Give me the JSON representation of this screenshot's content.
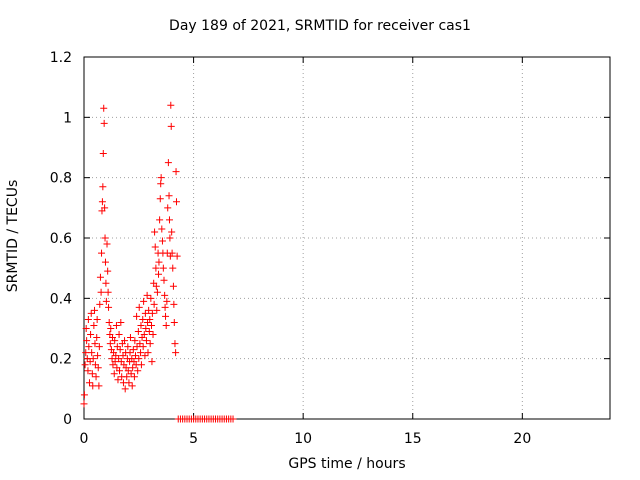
{
  "chart_data": {
    "type": "scatter",
    "title": "Day 189 of 2021, SRMTID for receiver cas1",
    "xlabel": "GPS time / hours",
    "ylabel": "SRMTID / TECUs",
    "xlim": [
      0,
      24
    ],
    "ylim": [
      0,
      1.2
    ],
    "xticks": [
      0,
      5,
      10,
      15,
      20
    ],
    "xtick_labels": [
      "0",
      "5",
      "10",
      "15",
      "20"
    ],
    "yticks": [
      0,
      0.2,
      0.4,
      0.6,
      0.8,
      1,
      1.2
    ],
    "ytick_labels": [
      "0",
      "0.2",
      "0.4",
      "0.6",
      "0.8",
      "1",
      "1.2"
    ],
    "grid": true,
    "marker": "+",
    "color": "#ff0000",
    "series": [
      {
        "name": "SRMTID",
        "points": [
          [
            0.0,
            0.05
          ],
          [
            0.02,
            0.08
          ],
          [
            0.05,
            0.18
          ],
          [
            0.08,
            0.22
          ],
          [
            0.1,
            0.3
          ],
          [
            0.12,
            0.26
          ],
          [
            0.15,
            0.2
          ],
          [
            0.18,
            0.16
          ],
          [
            0.2,
            0.33
          ],
          [
            0.22,
            0.24
          ],
          [
            0.25,
            0.12
          ],
          [
            0.28,
            0.19
          ],
          [
            0.3,
            0.28
          ],
          [
            0.33,
            0.35
          ],
          [
            0.35,
            0.22
          ],
          [
            0.38,
            0.15
          ],
          [
            0.4,
            0.11
          ],
          [
            0.42,
            0.2
          ],
          [
            0.45,
            0.31
          ],
          [
            0.48,
            0.36
          ],
          [
            0.5,
            0.25
          ],
          [
            0.52,
            0.18
          ],
          [
            0.55,
            0.14
          ],
          [
            0.58,
            0.27
          ],
          [
            0.6,
            0.33
          ],
          [
            0.62,
            0.21
          ],
          [
            0.65,
            0.17
          ],
          [
            0.68,
            0.11
          ],
          [
            0.7,
            0.24
          ],
          [
            0.72,
            0.38
          ],
          [
            0.75,
            0.47
          ],
          [
            0.78,
            0.42
          ],
          [
            0.8,
            0.55
          ],
          [
            0.82,
            0.69
          ],
          [
            0.84,
            0.72
          ],
          [
            0.86,
            0.77
          ],
          [
            0.88,
            0.88
          ],
          [
            0.9,
            1.03
          ],
          [
            0.92,
            0.98
          ],
          [
            0.94,
            0.7
          ],
          [
            0.96,
            0.6
          ],
          [
            0.98,
            0.52
          ],
          [
            1.0,
            0.45
          ],
          [
            1.02,
            0.39
          ],
          [
            1.05,
            0.58
          ],
          [
            1.08,
            0.49
          ],
          [
            1.1,
            0.42
          ],
          [
            1.12,
            0.37
          ],
          [
            1.15,
            0.32
          ],
          [
            1.18,
            0.28
          ],
          [
            1.2,
            0.25
          ],
          [
            1.22,
            0.3
          ],
          [
            1.25,
            0.23
          ],
          [
            1.28,
            0.2
          ],
          [
            1.3,
            0.27
          ],
          [
            1.32,
            0.18
          ],
          [
            1.35,
            0.22
          ],
          [
            1.38,
            0.15
          ],
          [
            1.4,
            0.26
          ],
          [
            1.42,
            0.19
          ],
          [
            1.45,
            0.21
          ],
          [
            1.48,
            0.31
          ],
          [
            1.5,
            0.17
          ],
          [
            1.52,
            0.24
          ],
          [
            1.55,
            0.13
          ],
          [
            1.58,
            0.2
          ],
          [
            1.6,
            0.28
          ],
          [
            1.62,
            0.16
          ],
          [
            1.65,
            0.23
          ],
          [
            1.68,
            0.32
          ],
          [
            1.7,
            0.19
          ],
          [
            1.72,
            0.14
          ],
          [
            1.75,
            0.25
          ],
          [
            1.78,
            0.21
          ],
          [
            1.8,
            0.12
          ],
          [
            1.82,
            0.18
          ],
          [
            1.85,
            0.26
          ],
          [
            1.88,
            0.1
          ],
          [
            1.9,
            0.22
          ],
          [
            1.92,
            0.17
          ],
          [
            1.95,
            0.14
          ],
          [
            1.98,
            0.2
          ],
          [
            2.0,
            0.24
          ],
          [
            2.02,
            0.16
          ],
          [
            2.05,
            0.12
          ],
          [
            2.08,
            0.19
          ],
          [
            2.1,
            0.22
          ],
          [
            2.12,
            0.27
          ],
          [
            2.15,
            0.15
          ],
          [
            2.18,
            0.2
          ],
          [
            2.2,
            0.11
          ],
          [
            2.22,
            0.17
          ],
          [
            2.25,
            0.23
          ],
          [
            2.28,
            0.19
          ],
          [
            2.3,
            0.14
          ],
          [
            2.32,
            0.26
          ],
          [
            2.35,
            0.21
          ],
          [
            2.38,
            0.18
          ],
          [
            2.4,
            0.34
          ],
          [
            2.42,
            0.24
          ],
          [
            2.45,
            0.16
          ],
          [
            2.48,
            0.29
          ],
          [
            2.5,
            0.2
          ],
          [
            2.52,
            0.37
          ],
          [
            2.55,
            0.25
          ],
          [
            2.58,
            0.22
          ],
          [
            2.6,
            0.31
          ],
          [
            2.62,
            0.18
          ],
          [
            2.65,
            0.27
          ],
          [
            2.68,
            0.33
          ],
          [
            2.7,
            0.24
          ],
          [
            2.72,
            0.39
          ],
          [
            2.75,
            0.28
          ],
          [
            2.78,
            0.21
          ],
          [
            2.8,
            0.35
          ],
          [
            2.82,
            0.3
          ],
          [
            2.85,
            0.26
          ],
          [
            2.88,
            0.41
          ],
          [
            2.9,
            0.32
          ],
          [
            2.92,
            0.22
          ],
          [
            2.95,
            0.36
          ],
          [
            2.98,
            0.29
          ],
          [
            3.0,
            0.33
          ],
          [
            3.02,
            0.25
          ],
          [
            3.05,
            0.4
          ],
          [
            3.08,
            0.31
          ],
          [
            3.1,
            0.19
          ],
          [
            3.12,
            0.35
          ],
          [
            3.15,
            0.28
          ],
          [
            3.18,
            0.45
          ],
          [
            3.2,
            0.38
          ],
          [
            3.22,
            0.62
          ],
          [
            3.25,
            0.57
          ],
          [
            3.28,
            0.5
          ],
          [
            3.3,
            0.44
          ],
          [
            3.32,
            0.36
          ],
          [
            3.35,
            0.42
          ],
          [
            3.38,
            0.55
          ],
          [
            3.4,
            0.48
          ],
          [
            3.42,
            0.52
          ],
          [
            3.45,
            0.66
          ],
          [
            3.48,
            0.73
          ],
          [
            3.5,
            0.78
          ],
          [
            3.52,
            0.8
          ],
          [
            3.55,
            0.63
          ],
          [
            3.58,
            0.59
          ],
          [
            3.6,
            0.55
          ],
          [
            3.62,
            0.5
          ],
          [
            3.65,
            0.46
          ],
          [
            3.68,
            0.41
          ],
          [
            3.7,
            0.37
          ],
          [
            3.72,
            0.34
          ],
          [
            3.75,
            0.31
          ],
          [
            3.78,
            0.39
          ],
          [
            3.8,
            0.55
          ],
          [
            3.82,
            0.7
          ],
          [
            3.85,
            0.85
          ],
          [
            3.88,
            0.74
          ],
          [
            3.9,
            0.66
          ],
          [
            3.92,
            0.6
          ],
          [
            3.94,
            0.54
          ],
          [
            3.96,
            1.04
          ],
          [
            3.98,
            0.97
          ],
          [
            4.0,
            0.62
          ],
          [
            4.02,
            0.55
          ],
          [
            4.05,
            0.5
          ],
          [
            4.08,
            0.44
          ],
          [
            4.1,
            0.38
          ],
          [
            4.12,
            0.32
          ],
          [
            4.15,
            0.25
          ],
          [
            4.18,
            0.22
          ],
          [
            4.2,
            0.82
          ],
          [
            4.22,
            0.72
          ],
          [
            4.25,
            0.54
          ],
          [
            4.3,
            0.0
          ],
          [
            4.4,
            0.0
          ],
          [
            4.5,
            0.0
          ],
          [
            4.6,
            0.0
          ],
          [
            4.7,
            0.0
          ],
          [
            4.8,
            0.0
          ],
          [
            4.9,
            0.0
          ],
          [
            5.0,
            0.0
          ],
          [
            5.1,
            0.0
          ],
          [
            5.2,
            0.0
          ],
          [
            5.3,
            0.0
          ],
          [
            5.4,
            0.0
          ],
          [
            5.5,
            0.0
          ],
          [
            5.6,
            0.0
          ],
          [
            5.7,
            0.0
          ],
          [
            5.8,
            0.0
          ],
          [
            5.9,
            0.0
          ],
          [
            6.0,
            0.0
          ],
          [
            6.1,
            0.0
          ],
          [
            6.2,
            0.0
          ],
          [
            6.3,
            0.0
          ],
          [
            6.4,
            0.0
          ],
          [
            6.5,
            0.0
          ],
          [
            6.6,
            0.0
          ],
          [
            6.7,
            0.0
          ],
          [
            6.8,
            0.0
          ]
        ]
      }
    ]
  }
}
